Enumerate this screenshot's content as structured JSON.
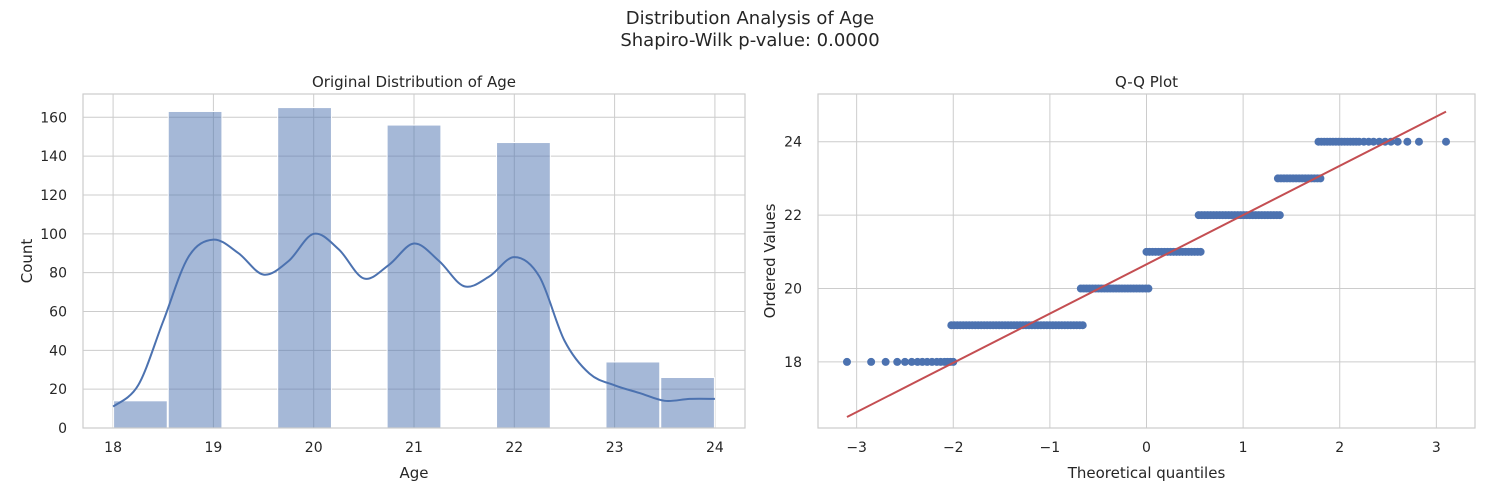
{
  "figure": {
    "title_line1": "Distribution Analysis of Age",
    "title_line2": "Shapiro-Wilk p-value: 0.0000"
  },
  "colors": {
    "bar": "#4c72b0",
    "kde": "#4c72b0",
    "points": "#4c72b0",
    "fit_line": "#c44e52",
    "grid": "#cccccc",
    "axes": "#cccccc"
  },
  "chart_data": [
    {
      "type": "bar",
      "title": "Original Distribution of Age",
      "xlabel": "Age",
      "ylabel": "Count",
      "xlim": [
        17.7,
        24.3
      ],
      "ylim": [
        0,
        172
      ],
      "xticks": [
        18,
        19,
        20,
        21,
        22,
        23,
        24
      ],
      "yticks": [
        0,
        20,
        40,
        60,
        80,
        100,
        120,
        140,
        160
      ],
      "grid": true,
      "bins": [
        {
          "x0": 18.0,
          "x1": 18.545,
          "count": 14
        },
        {
          "x0": 18.545,
          "x1": 19.09,
          "count": 163
        },
        {
          "x0": 19.636,
          "x1": 20.182,
          "count": 165
        },
        {
          "x0": 20.727,
          "x1": 21.273,
          "count": 156
        },
        {
          "x0": 21.818,
          "x1": 22.364,
          "count": 147
        },
        {
          "x0": 22.909,
          "x1": 23.455,
          "count": 34
        },
        {
          "x0": 23.455,
          "x1": 24.0,
          "count": 26
        }
      ],
      "kde": {
        "x": [
          18.0,
          18.25,
          18.5,
          18.75,
          19.0,
          19.25,
          19.5,
          19.75,
          20.0,
          20.25,
          20.5,
          20.75,
          21.0,
          21.25,
          21.5,
          21.75,
          22.0,
          22.25,
          22.5,
          22.75,
          23.0,
          23.25,
          23.5,
          23.75,
          24.0
        ],
        "y": [
          11,
          22,
          55,
          88,
          97,
          90,
          79,
          86,
          100,
          92,
          77,
          84,
          95,
          86,
          73,
          78,
          88,
          78,
          45,
          28,
          22,
          18,
          14,
          15,
          15
        ]
      }
    },
    {
      "type": "scatter",
      "title": "Q-Q Plot",
      "xlabel": "Theoretical quantiles",
      "ylabel": "Ordered Values",
      "xlim": [
        -3.4,
        3.4
      ],
      "ylim": [
        16.2,
        25.3
      ],
      "xticks": [
        -3,
        -2,
        -1,
        0,
        1,
        2,
        3
      ],
      "xtick_labels": [
        "−3",
        "−2",
        "−1",
        "0",
        "1",
        "2",
        "3"
      ],
      "yticks": [
        18,
        20,
        22,
        24
      ],
      "grid": true,
      "groups": [
        {
          "y": 18,
          "x_min": -2.06,
          "x_max": -2.0,
          "extra_x": [
            -3.1,
            -2.85,
            -2.7,
            -2.58,
            -2.5,
            -2.43,
            -2.37,
            -2.32,
            -2.27,
            -2.22,
            -2.17,
            -2.13,
            -2.09
          ]
        },
        {
          "y": 19,
          "x_min": -2.02,
          "x_max": -0.66,
          "extra_x": []
        },
        {
          "y": 20,
          "x_min": -0.68,
          "x_max": 0.02,
          "extra_x": []
        },
        {
          "y": 21,
          "x_min": 0.0,
          "x_max": 0.56,
          "extra_x": []
        },
        {
          "y": 22,
          "x_min": 0.54,
          "x_max": 1.38,
          "extra_x": []
        },
        {
          "y": 23,
          "x_min": 1.36,
          "x_max": 1.8,
          "extra_x": []
        },
        {
          "y": 24,
          "x_min": 1.78,
          "x_max": 2.2,
          "extra_x": [
            2.25,
            2.3,
            2.35,
            2.41,
            2.47,
            2.53,
            2.6,
            2.7,
            2.82,
            3.1
          ]
        }
      ],
      "fit_line": {
        "x": [
          -3.1,
          3.1
        ],
        "y": [
          16.5,
          24.82
        ]
      }
    }
  ]
}
